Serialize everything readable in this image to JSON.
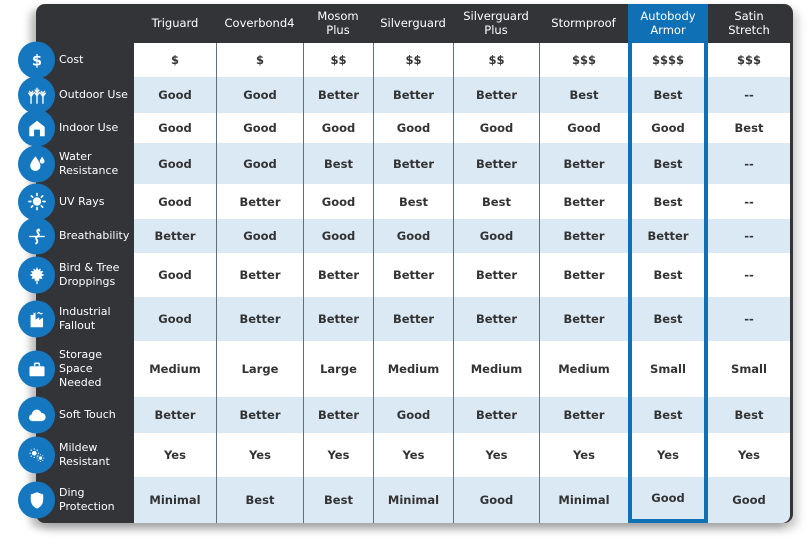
{
  "colors": {
    "accent_blue": "#0f70b5",
    "icon_blue": "#1577bf",
    "panel_dark": "#333438",
    "row_alt_blue": "#dbe9f5",
    "separator": "#5f707c",
    "cell_text": "#333333",
    "header_text": "#ffffff"
  },
  "chart_data": {
    "type": "table",
    "highlighted_column": "Autobody Armor",
    "columns": [
      {
        "id": "triguard",
        "label": "Triguard",
        "lines": [
          "Triguard"
        ],
        "highlighted": false
      },
      {
        "id": "coverbond4",
        "label": "Coverbond4",
        "lines": [
          "Coverbond4"
        ],
        "highlighted": false
      },
      {
        "id": "mosom-plus",
        "label": "Mosom Plus",
        "lines": [
          "Mosom",
          "Plus"
        ],
        "highlighted": false
      },
      {
        "id": "silverguard",
        "label": "Silverguard",
        "lines": [
          "Silverguard"
        ],
        "highlighted": false
      },
      {
        "id": "silverguard-plus",
        "label": "Silverguard Plus",
        "lines": [
          "Silverguard",
          "Plus"
        ],
        "highlighted": false
      },
      {
        "id": "stormproof",
        "label": "Stormproof",
        "lines": [
          "Stormproof"
        ],
        "highlighted": false
      },
      {
        "id": "autobody-armor",
        "label": "Autobody Armor",
        "lines": [
          "Autobody",
          "Armor"
        ],
        "highlighted": true
      },
      {
        "id": "satin-stretch",
        "label": "Satin Stretch",
        "lines": [
          "Satin",
          "Stretch"
        ],
        "highlighted": false
      }
    ],
    "rows": [
      {
        "id": "cost",
        "label": "Cost",
        "lines": [
          "Cost"
        ],
        "icon": "dollar-icon",
        "values": [
          "$",
          "$",
          "$$",
          "$$",
          "$$",
          "$$$",
          "$$$$",
          "$$$"
        ]
      },
      {
        "id": "outdoor-use",
        "label": "Outdoor Use",
        "lines": [
          "Outdoor Use"
        ],
        "icon": "trees-icon",
        "values": [
          "Good",
          "Good",
          "Better",
          "Better",
          "Better",
          "Best",
          "Best",
          "--"
        ]
      },
      {
        "id": "indoor-use",
        "label": "Indoor Use",
        "lines": [
          "Indoor Use"
        ],
        "icon": "house-icon",
        "values": [
          "Good",
          "Good",
          "Good",
          "Good",
          "Good",
          "Good",
          "Good",
          "Best"
        ]
      },
      {
        "id": "water-resistance",
        "label": "Water Resistance",
        "lines": [
          "Water",
          "Resistance"
        ],
        "icon": "droplet-icon",
        "values": [
          "Good",
          "Good",
          "Best",
          "Better",
          "Better",
          "Better",
          "Best",
          "--"
        ]
      },
      {
        "id": "uv-rays",
        "label": "UV Rays",
        "lines": [
          "UV Rays"
        ],
        "icon": "sun-icon",
        "values": [
          "Good",
          "Better",
          "Good",
          "Best",
          "Best",
          "Better",
          "Best",
          "--"
        ]
      },
      {
        "id": "breathability",
        "label": "Breathability",
        "lines": [
          "Breathability"
        ],
        "icon": "airflow-icon",
        "values": [
          "Better",
          "Good",
          "Good",
          "Good",
          "Good",
          "Better",
          "Better",
          "--"
        ]
      },
      {
        "id": "bird-tree-droppings",
        "label": "Bird & Tree Droppings",
        "lines": [
          "Bird & Tree",
          "Droppings"
        ],
        "icon": "maple-leaf-icon",
        "values": [
          "Good",
          "Better",
          "Better",
          "Better",
          "Better",
          "Better",
          "Best",
          "--"
        ]
      },
      {
        "id": "industrial-fallout",
        "label": "Industrial Fallout",
        "lines": [
          "Industrial",
          "Fallout"
        ],
        "icon": "factory-icon",
        "values": [
          "Good",
          "Better",
          "Better",
          "Better",
          "Better",
          "Better",
          "Best",
          "--"
        ]
      },
      {
        "id": "storage-space-needed",
        "label": "Storage Space Needed",
        "lines": [
          "Storage",
          "Space",
          "Needed"
        ],
        "icon": "suitcase-icon",
        "values": [
          "Medium",
          "Large",
          "Large",
          "Medium",
          "Medium",
          "Medium",
          "Small",
          "Small"
        ]
      },
      {
        "id": "soft-touch",
        "label": "Soft Touch",
        "lines": [
          "Soft Touch"
        ],
        "icon": "cloud-icon",
        "values": [
          "Better",
          "Better",
          "Better",
          "Good",
          "Better",
          "Better",
          "Best",
          "Best"
        ]
      },
      {
        "id": "mildew-resistant",
        "label": "Mildew Resistant",
        "lines": [
          "Mildew",
          "Resistant"
        ],
        "icon": "spores-icon",
        "values": [
          "Yes",
          "Yes",
          "Yes",
          "Yes",
          "Yes",
          "Yes",
          "Yes",
          "Yes"
        ]
      },
      {
        "id": "ding-protection",
        "label": "Ding Protection",
        "lines": [
          "Ding",
          "Protection"
        ],
        "icon": "shield-icon",
        "values": [
          "Minimal",
          "Best",
          "Best",
          "Minimal",
          "Good",
          "Minimal",
          "Good",
          "Good"
        ]
      }
    ]
  }
}
